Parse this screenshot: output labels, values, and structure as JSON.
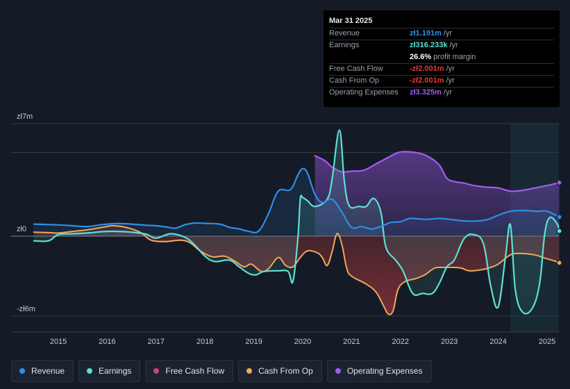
{
  "tooltip": {
    "date": "Mar 31 2025",
    "rows": [
      {
        "label": "Revenue",
        "value": "zł1.191m",
        "unit": " /yr",
        "color": "#2e8fe8"
      },
      {
        "label": "Earnings",
        "value": "zł316.233k",
        "unit": " /yr",
        "color": "#5ee0d4"
      },
      {
        "label": "",
        "value": "26.6%",
        "unit": " profit margin",
        "color": "#ffffff"
      },
      {
        "label": "Free Cash Flow",
        "value": "-zł2.001m",
        "unit": " /yr",
        "color": "#e5383b"
      },
      {
        "label": "Cash From Op",
        "value": "-zł2.001m",
        "unit": " /yr",
        "color": "#e5383b"
      },
      {
        "label": "Operating Expenses",
        "value": "zł3.325m",
        "unit": " /yr",
        "color": "#a25cf2"
      }
    ]
  },
  "legend": [
    {
      "label": "Revenue",
      "color": "#2e8fe8"
    },
    {
      "label": "Earnings",
      "color": "#5ee0d4"
    },
    {
      "label": "Free Cash Flow",
      "color": "#c2457b"
    },
    {
      "label": "Cash From Op",
      "color": "#eca85b"
    },
    {
      "label": "Operating Expenses",
      "color": "#a25cf2"
    }
  ],
  "chart_data": {
    "type": "line",
    "title": "",
    "ylim": [
      -6.5,
      7
    ],
    "y_tick_labels": [
      {
        "value": 7,
        "label": "zł7m"
      },
      {
        "value": 0,
        "label": "zł0"
      },
      {
        "value": -6,
        "label": "-zł6m"
      }
    ],
    "xlim": [
      2014.35,
      2025.25
    ],
    "x_ticks": [
      "2015",
      "2016",
      "2017",
      "2018",
      "2019",
      "2020",
      "2021",
      "2022",
      "2023",
      "2024",
      "2025"
    ],
    "forecast_region_start": 2024.25,
    "units": "zł millions",
    "series": [
      {
        "name": "Revenue",
        "color": "#2e8fe8",
        "points": [
          [
            2014.5,
            0.75
          ],
          [
            2015.0,
            0.7
          ],
          [
            2015.3,
            0.65
          ],
          [
            2015.6,
            0.6
          ],
          [
            2015.9,
            0.72
          ],
          [
            2016.2,
            0.78
          ],
          [
            2016.5,
            0.75
          ],
          [
            2016.8,
            0.68
          ],
          [
            2017.0,
            0.65
          ],
          [
            2017.2,
            0.58
          ],
          [
            2017.4,
            0.5
          ],
          [
            2017.6,
            0.72
          ],
          [
            2017.8,
            0.82
          ],
          [
            2018.0,
            0.8
          ],
          [
            2018.3,
            0.75
          ],
          [
            2018.5,
            0.55
          ],
          [
            2018.7,
            0.45
          ],
          [
            2018.9,
            0.3
          ],
          [
            2019.1,
            0.32
          ],
          [
            2019.3,
            1.4
          ],
          [
            2019.5,
            2.8
          ],
          [
            2019.75,
            2.9
          ],
          [
            2019.9,
            3.8
          ],
          [
            2020.0,
            4.2
          ],
          [
            2020.1,
            3.9
          ],
          [
            2020.25,
            2.6
          ],
          [
            2020.4,
            2.1
          ],
          [
            2020.6,
            2.3
          ],
          [
            2020.8,
            1.5
          ],
          [
            2021.0,
            0.55
          ],
          [
            2021.2,
            0.6
          ],
          [
            2021.4,
            0.45
          ],
          [
            2021.6,
            0.6
          ],
          [
            2021.8,
            0.85
          ],
          [
            2022.0,
            0.9
          ],
          [
            2022.2,
            1.1
          ],
          [
            2022.5,
            1.05
          ],
          [
            2022.8,
            1.1
          ],
          [
            2023.0,
            1.05
          ],
          [
            2023.3,
            0.95
          ],
          [
            2023.6,
            0.95
          ],
          [
            2023.8,
            1.05
          ],
          [
            2024.0,
            1.3
          ],
          [
            2024.25,
            1.55
          ],
          [
            2024.5,
            1.6
          ],
          [
            2024.8,
            1.55
          ],
          [
            2025.0,
            1.55
          ],
          [
            2025.25,
            1.19
          ]
        ]
      },
      {
        "name": "Earnings",
        "color": "#5ee0d4",
        "points": [
          [
            2014.5,
            -0.35
          ],
          [
            2014.8,
            -0.35
          ],
          [
            2015.0,
            0.1
          ],
          [
            2015.3,
            0.15
          ],
          [
            2015.6,
            0.2
          ],
          [
            2015.9,
            0.28
          ],
          [
            2016.2,
            0.3
          ],
          [
            2016.5,
            0.25
          ],
          [
            2016.8,
            0.12
          ],
          [
            2017.0,
            -0.15
          ],
          [
            2017.3,
            0.15
          ],
          [
            2017.6,
            -0.1
          ],
          [
            2017.8,
            -0.7
          ],
          [
            2018.0,
            -1.5
          ],
          [
            2018.2,
            -1.9
          ],
          [
            2018.5,
            -1.8
          ],
          [
            2018.7,
            -2.3
          ],
          [
            2018.9,
            -2.8
          ],
          [
            2019.05,
            -2.9
          ],
          [
            2019.2,
            -2.65
          ],
          [
            2019.5,
            -2.6
          ],
          [
            2019.7,
            -2.65
          ],
          [
            2019.8,
            -3.4
          ],
          [
            2019.9,
            -0.2
          ],
          [
            2019.95,
            2.3
          ],
          [
            2020.0,
            2.4
          ],
          [
            2020.1,
            2.2
          ],
          [
            2020.25,
            1.85
          ],
          [
            2020.5,
            2.3
          ],
          [
            2020.6,
            3.5
          ],
          [
            2020.75,
            6.6
          ],
          [
            2020.85,
            3.5
          ],
          [
            2020.95,
            1.9
          ],
          [
            2021.15,
            1.85
          ],
          [
            2021.3,
            1.85
          ],
          [
            2021.45,
            2.35
          ],
          [
            2021.6,
            1.5
          ],
          [
            2021.7,
            -0.8
          ],
          [
            2021.9,
            -1.8
          ],
          [
            2022.05,
            -2.6
          ],
          [
            2022.25,
            -4.3
          ],
          [
            2022.45,
            -4.3
          ],
          [
            2022.65,
            -4.3
          ],
          [
            2022.8,
            -3.5
          ],
          [
            2022.95,
            -2.3
          ],
          [
            2023.1,
            -1.8
          ],
          [
            2023.3,
            -0.2
          ],
          [
            2023.5,
            0.1
          ],
          [
            2023.7,
            -0.6
          ],
          [
            2023.85,
            -3.8
          ],
          [
            2024.0,
            -5.3
          ],
          [
            2024.15,
            -1.5
          ],
          [
            2024.25,
            0.7
          ],
          [
            2024.35,
            -4.0
          ],
          [
            2024.5,
            -5.7
          ],
          [
            2024.7,
            -5.4
          ],
          [
            2024.85,
            -3.5
          ],
          [
            2024.95,
            0.1
          ],
          [
            2025.05,
            1.15
          ],
          [
            2025.2,
            0.8
          ],
          [
            2025.25,
            0.32
          ]
        ]
      },
      {
        "name": "Free Cash Flow",
        "color": "#c2457b",
        "points": [
          [
            2014.5,
            0.25
          ],
          [
            2014.8,
            0.22
          ],
          [
            2015.0,
            0.2
          ],
          [
            2015.3,
            0.3
          ],
          [
            2015.6,
            0.4
          ],
          [
            2015.9,
            0.55
          ],
          [
            2016.1,
            0.65
          ],
          [
            2016.3,
            0.6
          ],
          [
            2016.5,
            0.45
          ],
          [
            2016.7,
            0.2
          ],
          [
            2016.9,
            -0.3
          ],
          [
            2017.2,
            -0.4
          ],
          [
            2017.5,
            -0.3
          ],
          [
            2017.7,
            -0.5
          ],
          [
            2017.9,
            -1.1
          ],
          [
            2018.15,
            -1.55
          ],
          [
            2018.4,
            -1.5
          ],
          [
            2018.6,
            -1.85
          ],
          [
            2018.8,
            -2.3
          ],
          [
            2018.95,
            -2.1
          ],
          [
            2019.15,
            -2.65
          ],
          [
            2019.3,
            -2.45
          ]
        ]
      },
      {
        "name": "Cash From Op",
        "color": "#eca85b",
        "points": [
          [
            2014.5,
            0.25
          ],
          [
            2014.8,
            0.22
          ],
          [
            2015.0,
            0.2
          ],
          [
            2015.3,
            0.3
          ],
          [
            2015.6,
            0.4
          ],
          [
            2015.9,
            0.55
          ],
          [
            2016.1,
            0.65
          ],
          [
            2016.3,
            0.6
          ],
          [
            2016.5,
            0.45
          ],
          [
            2016.7,
            0.2
          ],
          [
            2016.9,
            -0.3
          ],
          [
            2017.2,
            -0.4
          ],
          [
            2017.5,
            -0.3
          ],
          [
            2017.7,
            -0.5
          ],
          [
            2017.9,
            -1.1
          ],
          [
            2018.15,
            -1.55
          ],
          [
            2018.4,
            -1.5
          ],
          [
            2018.6,
            -1.85
          ],
          [
            2018.8,
            -2.3
          ],
          [
            2018.95,
            -2.1
          ],
          [
            2019.15,
            -2.65
          ],
          [
            2019.3,
            -2.45
          ],
          [
            2019.5,
            -1.6
          ],
          [
            2019.65,
            -2.2
          ],
          [
            2019.8,
            -2.3
          ],
          [
            2019.95,
            -1.6
          ],
          [
            2020.1,
            -1.1
          ],
          [
            2020.3,
            -1.25
          ],
          [
            2020.4,
            -1.6
          ],
          [
            2020.5,
            -2.2
          ],
          [
            2020.6,
            -1.2
          ],
          [
            2020.7,
            0.15
          ],
          [
            2020.8,
            -0.6
          ],
          [
            2020.9,
            -2.4
          ],
          [
            2021.0,
            -3.0
          ],
          [
            2021.3,
            -3.6
          ],
          [
            2021.5,
            -4.2
          ],
          [
            2021.65,
            -5.2
          ],
          [
            2021.75,
            -5.85
          ],
          [
            2021.85,
            -5.6
          ],
          [
            2021.95,
            -4.0
          ],
          [
            2022.1,
            -3.4
          ],
          [
            2022.3,
            -3.2
          ],
          [
            2022.5,
            -2.9
          ],
          [
            2022.7,
            -2.4
          ],
          [
            2022.9,
            -2.35
          ],
          [
            2023.1,
            -2.35
          ],
          [
            2023.25,
            -2.4
          ],
          [
            2023.4,
            -2.6
          ],
          [
            2023.6,
            -2.55
          ],
          [
            2023.8,
            -2.4
          ],
          [
            2024.0,
            -2.1
          ],
          [
            2024.25,
            -1.4
          ],
          [
            2024.45,
            -1.3
          ],
          [
            2024.65,
            -1.35
          ],
          [
            2024.8,
            -1.45
          ],
          [
            2024.95,
            -1.65
          ],
          [
            2025.1,
            -1.8
          ],
          [
            2025.25,
            -2.0
          ]
        ]
      },
      {
        "name": "Operating Expenses",
        "color": "#a25cf2",
        "points": [
          [
            2020.25,
            5.0
          ],
          [
            2020.45,
            4.7
          ],
          [
            2020.6,
            4.3
          ],
          [
            2020.8,
            4.0
          ],
          [
            2021.0,
            4.05
          ],
          [
            2021.25,
            4.1
          ],
          [
            2021.5,
            4.5
          ],
          [
            2021.75,
            4.9
          ],
          [
            2021.95,
            5.2
          ],
          [
            2022.15,
            5.25
          ],
          [
            2022.4,
            5.15
          ],
          [
            2022.6,
            4.9
          ],
          [
            2022.8,
            4.4
          ],
          [
            2022.95,
            3.6
          ],
          [
            2023.1,
            3.4
          ],
          [
            2023.3,
            3.3
          ],
          [
            2023.5,
            3.15
          ],
          [
            2023.75,
            3.05
          ],
          [
            2024.0,
            3.0
          ],
          [
            2024.25,
            2.8
          ],
          [
            2024.5,
            2.85
          ],
          [
            2024.75,
            3.0
          ],
          [
            2025.0,
            3.15
          ],
          [
            2025.25,
            3.33
          ]
        ]
      }
    ]
  }
}
